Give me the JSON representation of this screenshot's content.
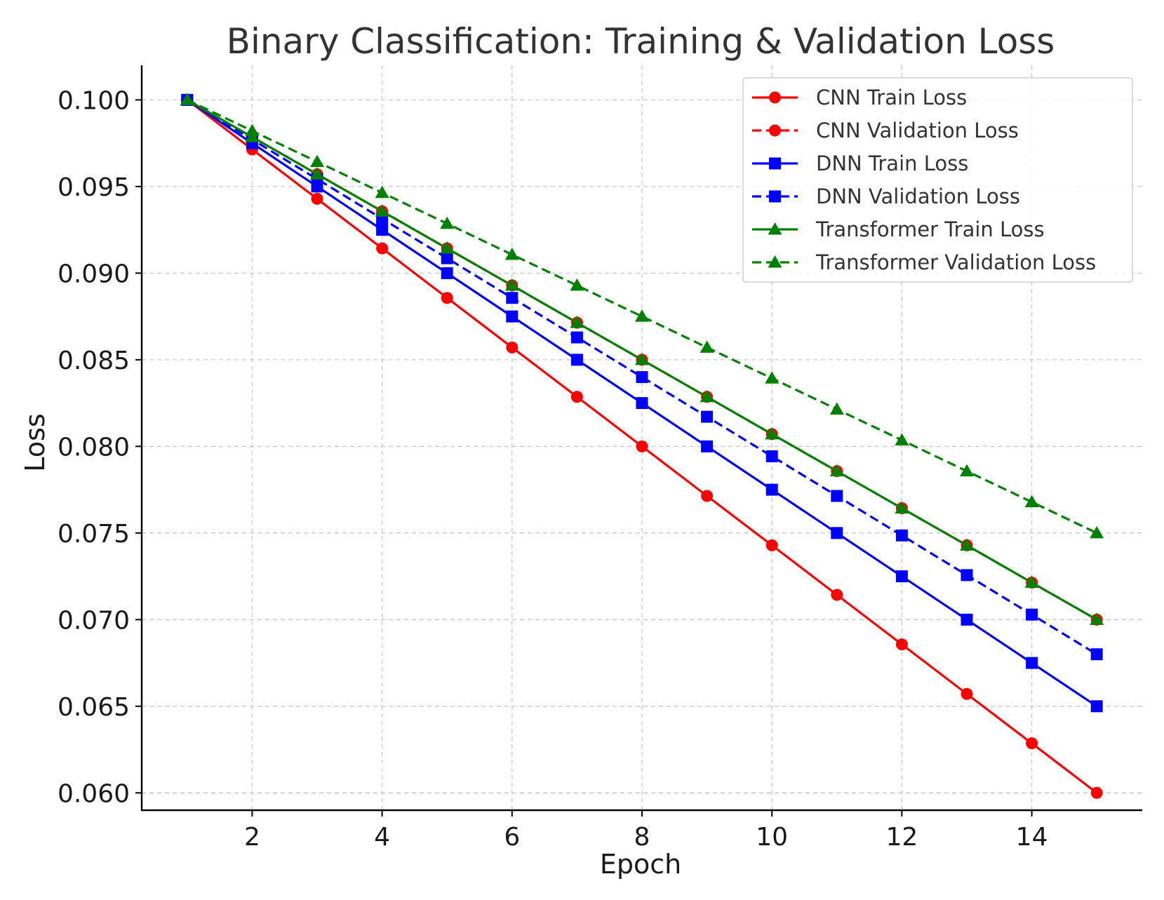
{
  "chart_data": {
    "type": "line",
    "title": "Binary Classification: Training & Validation Loss",
    "xlabel": "Epoch",
    "ylabel": "Loss",
    "xlim": [
      0.3,
      15.7
    ],
    "ylim": [
      0.059,
      0.102
    ],
    "xticks": [
      2,
      4,
      6,
      8,
      10,
      12,
      14
    ],
    "xtick_labels": [
      "2",
      "4",
      "6",
      "8",
      "10",
      "12",
      "14"
    ],
    "yticks": [
      0.06,
      0.065,
      0.07,
      0.075,
      0.08,
      0.085,
      0.09,
      0.095,
      0.1
    ],
    "ytick_labels": [
      "0.060",
      "0.065",
      "0.070",
      "0.075",
      "0.080",
      "0.085",
      "0.090",
      "0.095",
      "0.100"
    ],
    "grid": true,
    "legend_position": "top-right",
    "x": [
      1,
      2,
      3,
      4,
      5,
      6,
      7,
      8,
      9,
      10,
      11,
      12,
      13,
      14,
      15
    ],
    "series": [
      {
        "name": "CNN Train Loss",
        "color": "#ff0000",
        "dash": "solid",
        "marker": "circle",
        "values": [
          0.1,
          0.09714,
          0.09429,
          0.09143,
          0.08857,
          0.08571,
          0.08286,
          0.08,
          0.07714,
          0.07429,
          0.07143,
          0.06857,
          0.06571,
          0.06286,
          0.06
        ]
      },
      {
        "name": "CNN Validation Loss",
        "color": "#ff0000",
        "dash": "dashed",
        "marker": "circle",
        "values": [
          0.1,
          0.09786,
          0.09571,
          0.09357,
          0.09143,
          0.08929,
          0.08714,
          0.085,
          0.08286,
          0.08071,
          0.07857,
          0.07643,
          0.07429,
          0.07214,
          0.07
        ]
      },
      {
        "name": "DNN Train Loss",
        "color": "#0000ff",
        "dash": "solid",
        "marker": "square",
        "values": [
          0.1,
          0.0975,
          0.095,
          0.0925,
          0.09,
          0.0875,
          0.085,
          0.0825,
          0.08,
          0.0775,
          0.075,
          0.0725,
          0.07,
          0.0675,
          0.065
        ]
      },
      {
        "name": "DNN Validation Loss",
        "color": "#0000ff",
        "dash": "dashed",
        "marker": "square",
        "values": [
          0.1,
          0.09771,
          0.09543,
          0.09314,
          0.09086,
          0.08857,
          0.08629,
          0.084,
          0.08171,
          0.07943,
          0.07714,
          0.07486,
          0.07257,
          0.07029,
          0.068
        ]
      },
      {
        "name": "Transformer Train Loss",
        "color": "#008000",
        "dash": "solid",
        "marker": "triangle",
        "values": [
          0.1,
          0.09786,
          0.09571,
          0.09357,
          0.09143,
          0.08929,
          0.08714,
          0.085,
          0.08286,
          0.08071,
          0.07857,
          0.07643,
          0.07429,
          0.07214,
          0.07
        ]
      },
      {
        "name": "Transformer Validation Loss",
        "color": "#008000",
        "dash": "dashed",
        "marker": "triangle",
        "values": [
          0.1,
          0.09821,
          0.09643,
          0.09464,
          0.09286,
          0.09107,
          0.08929,
          0.0875,
          0.08571,
          0.08393,
          0.08214,
          0.08036,
          0.07857,
          0.07679,
          0.075
        ]
      }
    ]
  }
}
